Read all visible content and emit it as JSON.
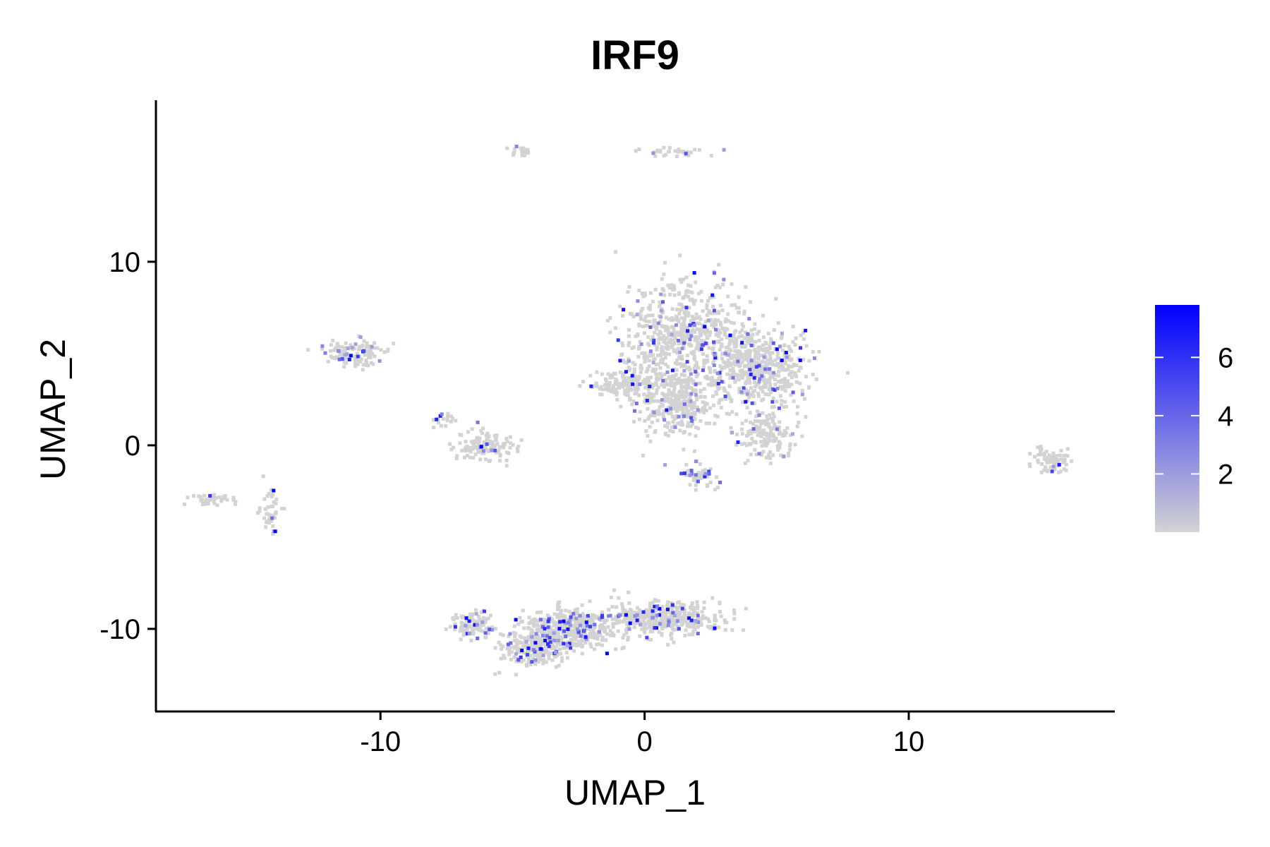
{
  "chart_data": {
    "type": "scatter",
    "title": "IRF9",
    "xlabel": "UMAP_1",
    "ylabel": "UMAP_2",
    "xlim": [
      -18.5,
      17.8
    ],
    "ylim": [
      -14.5,
      18.8
    ],
    "xticks": [
      -10,
      0,
      10
    ],
    "yticks": [
      -10,
      0,
      10
    ],
    "xtick_labels": [
      "-10",
      "0",
      "10"
    ],
    "ytick_labels": [
      "-10",
      "0",
      "10"
    ],
    "grid": false,
    "legend": {
      "placement": "right",
      "type": "colorbar",
      "min": 0,
      "max": 7.8,
      "ticks": [
        2,
        4,
        6
      ],
      "tick_labels": [
        "2",
        "4",
        "6"
      ]
    },
    "colors": {
      "low": "#d3d3d3",
      "high": "#0000ff",
      "axis": "#000000"
    },
    "clusters": [
      {
        "center": [
          1.6,
          6.0
        ],
        "radius": [
          2.3,
          2.8
        ],
        "weight": 0.12,
        "expression_rate": 0.08
      },
      {
        "center": [
          4.3,
          4.2
        ],
        "radius": [
          1.9,
          2.2
        ],
        "weight": 0.1,
        "expression_rate": 0.08
      },
      {
        "center": [
          1.3,
          2.4
        ],
        "radius": [
          1.4,
          1.9
        ],
        "weight": 0.07,
        "expression_rate": 0.06
      },
      {
        "center": [
          -0.6,
          3.3
        ],
        "radius": [
          1.4,
          0.9
        ],
        "weight": 0.03,
        "expression_rate": 0.05
      },
      {
        "center": [
          4.6,
          0.6
        ],
        "radius": [
          1.1,
          1.3
        ],
        "weight": 0.03,
        "expression_rate": 0.08
      },
      {
        "center": [
          2.0,
          -1.7
        ],
        "radius": [
          0.8,
          0.6
        ],
        "weight": 0.01,
        "expression_rate": 0.25
      },
      {
        "center": [
          -2.8,
          -10.0
        ],
        "radius": [
          1.8,
          1.1
        ],
        "weight": 0.09,
        "expression_rate": 0.12
      },
      {
        "center": [
          0.8,
          -9.4
        ],
        "radius": [
          2.2,
          0.9
        ],
        "weight": 0.08,
        "expression_rate": 0.11
      },
      {
        "center": [
          -4.2,
          -11.1
        ],
        "radius": [
          1.2,
          1.0
        ],
        "weight": 0.04,
        "expression_rate": 0.12
      },
      {
        "center": [
          -6.5,
          -9.8
        ],
        "radius": [
          0.7,
          0.8
        ],
        "weight": 0.02,
        "expression_rate": 0.12
      },
      {
        "center": [
          -11.1,
          5.0
        ],
        "radius": [
          1.2,
          0.7
        ],
        "weight": 0.025,
        "expression_rate": 0.15
      },
      {
        "center": [
          -6.0,
          0.0
        ],
        "radius": [
          1.2,
          0.8
        ],
        "weight": 0.025,
        "expression_rate": 0.04
      },
      {
        "center": [
          -7.7,
          1.4
        ],
        "radius": [
          0.5,
          0.4
        ],
        "weight": 0.004,
        "expression_rate": 0.1
      },
      {
        "center": [
          15.4,
          -0.8
        ],
        "radius": [
          0.7,
          0.7
        ],
        "weight": 0.015,
        "expression_rate": 0.05
      },
      {
        "center": [
          -16.2,
          -3.0
        ],
        "radius": [
          1.0,
          0.3
        ],
        "weight": 0.008,
        "expression_rate": 0.05
      },
      {
        "center": [
          -14.2,
          -3.7
        ],
        "radius": [
          0.4,
          1.0
        ],
        "weight": 0.008,
        "expression_rate": 0.1
      },
      {
        "center": [
          -4.7,
          16.0
        ],
        "radius": [
          0.7,
          0.3
        ],
        "weight": 0.004,
        "expression_rate": 0.15
      },
      {
        "center": [
          1.0,
          16.0
        ],
        "radius": [
          1.3,
          0.3
        ],
        "weight": 0.006,
        "expression_rate": 0.08
      }
    ]
  }
}
